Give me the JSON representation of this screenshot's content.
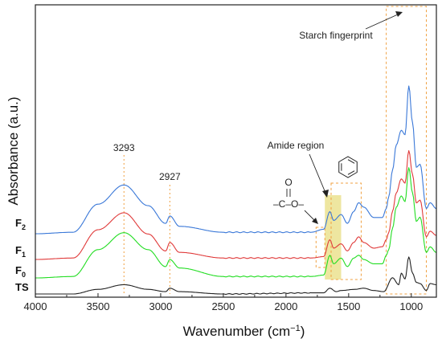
{
  "chart_data": {
    "type": "line",
    "xlabel": "Wavenumber (cm",
    "xlabel_sup": "−1",
    "xlabel_close": ")",
    "ylabel": "Absorbance (a.u.)",
    "xlim": [
      4000,
      800
    ],
    "x_reversed": true,
    "x_ticks": [
      4000,
      3500,
      3000,
      2500,
      2000,
      1500,
      1000
    ],
    "y_ticks_shown": false,
    "grid": false,
    "colors": {
      "TS": "#222222",
      "F0": "#22dd22",
      "F1": "#e03a3a",
      "F2": "#3a78d8",
      "box": "#f0a040",
      "highlight": "#e8dd80"
    },
    "series": [
      {
        "key": "TS",
        "label": "TS",
        "sub": ""
      },
      {
        "key": "F0",
        "label": "F",
        "sub": "0"
      },
      {
        "key": "F1",
        "label": "F",
        "sub": "1"
      },
      {
        "key": "F2",
        "label": "F",
        "sub": "2"
      }
    ],
    "annotations": {
      "peak_3293": "3293",
      "peak_2927": "2927",
      "amide_region": "Amide region",
      "starch_fingerprint": "Starch fingerprint",
      "ester_group": "–C–O–",
      "ester_o": "O"
    },
    "annotation_positions_cm": {
      "peak_3293": 3293,
      "peak_2927": 2927,
      "amide_region_range": [
        1690,
        1560
      ],
      "aromatic_region_range": [
        1640,
        1400
      ],
      "ester_region_range": [
        1760,
        1690
      ],
      "starch_fingerprint_range": [
        1200,
        880
      ]
    },
    "curve_keypoints": {
      "note_units": "x in cm-1, y in relative absorbance (arbitrary units, offset per trace)",
      "TS": [
        [
          4000,
          0.02
        ],
        [
          3700,
          0.02
        ],
        [
          3500,
          0.06
        ],
        [
          3293,
          0.1
        ],
        [
          3100,
          0.06
        ],
        [
          2960,
          0.04
        ],
        [
          2927,
          0.07
        ],
        [
          2850,
          0.04
        ],
        [
          2500,
          0.02
        ],
        [
          1700,
          0.03
        ],
        [
          1650,
          0.07
        ],
        [
          1600,
          0.04
        ],
        [
          1560,
          0.05
        ],
        [
          1450,
          0.06
        ],
        [
          1380,
          0.07
        ],
        [
          1300,
          0.05
        ],
        [
          1220,
          0.04
        ],
        [
          1150,
          0.16
        ],
        [
          1100,
          0.1
        ],
        [
          1080,
          0.2
        ],
        [
          1050,
          0.15
        ],
        [
          1020,
          0.34
        ],
        [
          990,
          0.2
        ],
        [
          960,
          0.12
        ],
        [
          930,
          0.11
        ],
        [
          880,
          0.05
        ],
        [
          850,
          0.11
        ],
        [
          800,
          0.1
        ]
      ],
      "F0": [
        [
          4000,
          0.2
        ],
        [
          3700,
          0.21
        ],
        [
          3500,
          0.4
        ],
        [
          3293,
          0.52
        ],
        [
          3100,
          0.4
        ],
        [
          2960,
          0.28
        ],
        [
          2927,
          0.33
        ],
        [
          2850,
          0.27
        ],
        [
          2500,
          0.21
        ],
        [
          1800,
          0.21
        ],
        [
          1700,
          0.22
        ],
        [
          1650,
          0.36
        ],
        [
          1620,
          0.3
        ],
        [
          1560,
          0.34
        ],
        [
          1510,
          0.28
        ],
        [
          1460,
          0.34
        ],
        [
          1420,
          0.36
        ],
        [
          1380,
          0.33
        ],
        [
          1300,
          0.3
        ],
        [
          1230,
          0.3
        ],
        [
          1200,
          0.36
        ],
        [
          1180,
          0.4
        ],
        [
          1150,
          0.55
        ],
        [
          1120,
          0.7
        ],
        [
          1080,
          0.78
        ],
        [
          1050,
          0.74
        ],
        [
          1020,
          0.98
        ],
        [
          990,
          0.8
        ],
        [
          960,
          0.6
        ],
        [
          930,
          0.63
        ],
        [
          880,
          0.38
        ],
        [
          850,
          0.42
        ],
        [
          800,
          0.38
        ]
      ],
      "F1": [
        [
          4000,
          0.38
        ],
        [
          3700,
          0.39
        ],
        [
          3500,
          0.59
        ],
        [
          3293,
          0.71
        ],
        [
          3100,
          0.56
        ],
        [
          2960,
          0.44
        ],
        [
          2927,
          0.5
        ],
        [
          2850,
          0.43
        ],
        [
          2500,
          0.39
        ],
        [
          1800,
          0.39
        ],
        [
          1700,
          0.4
        ],
        [
          1650,
          0.52
        ],
        [
          1620,
          0.46
        ],
        [
          1560,
          0.49
        ],
        [
          1510,
          0.44
        ],
        [
          1460,
          0.5
        ],
        [
          1420,
          0.54
        ],
        [
          1380,
          0.5
        ],
        [
          1300,
          0.46
        ],
        [
          1230,
          0.47
        ],
        [
          1200,
          0.52
        ],
        [
          1180,
          0.57
        ],
        [
          1150,
          0.72
        ],
        [
          1120,
          0.85
        ],
        [
          1080,
          0.95
        ],
        [
          1050,
          0.92
        ],
        [
          1020,
          1.15
        ],
        [
          990,
          0.98
        ],
        [
          960,
          0.78
        ],
        [
          930,
          0.8
        ],
        [
          880,
          0.54
        ],
        [
          850,
          0.58
        ],
        [
          800,
          0.55
        ]
      ],
      "F2": [
        [
          4000,
          0.55
        ],
        [
          3700,
          0.56
        ],
        [
          3500,
          0.75
        ],
        [
          3293,
          0.88
        ],
        [
          3100,
          0.74
        ],
        [
          2960,
          0.62
        ],
        [
          2927,
          0.67
        ],
        [
          2850,
          0.6
        ],
        [
          2500,
          0.56
        ],
        [
          1800,
          0.56
        ],
        [
          1700,
          0.58
        ],
        [
          1650,
          0.7
        ],
        [
          1620,
          0.64
        ],
        [
          1560,
          0.68
        ],
        [
          1510,
          0.62
        ],
        [
          1460,
          0.7
        ],
        [
          1420,
          0.76
        ],
        [
          1380,
          0.73
        ],
        [
          1300,
          0.66
        ],
        [
          1230,
          0.66
        ],
        [
          1200,
          0.72
        ],
        [
          1180,
          0.8
        ],
        [
          1150,
          0.98
        ],
        [
          1120,
          1.15
        ],
        [
          1080,
          1.25
        ],
        [
          1050,
          1.22
        ],
        [
          1020,
          1.55
        ],
        [
          990,
          1.3
        ],
        [
          960,
          1.0
        ],
        [
          930,
          1.02
        ],
        [
          880,
          0.72
        ],
        [
          850,
          0.76
        ],
        [
          800,
          0.72
        ]
      ]
    }
  }
}
